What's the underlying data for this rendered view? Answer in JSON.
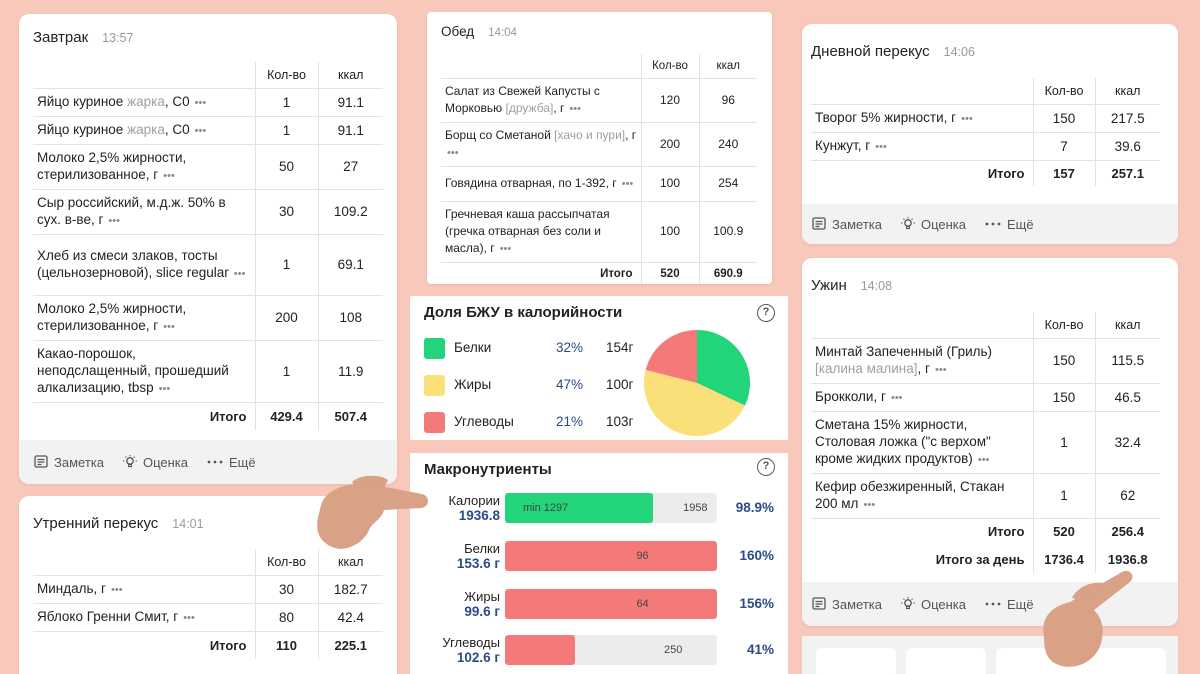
{
  "columns": {
    "qty": "Кол-во",
    "kcal": "ккал"
  },
  "footer": {
    "note": "Заметка",
    "rating": "Оценка",
    "more": "Ещё"
  },
  "breakfast": {
    "title": "Завтрак",
    "time": "13:57",
    "items": [
      {
        "name": "Яйцо куриное",
        "brand": "жарка",
        "unit": ", С0",
        "qty": "1",
        "kcal": "91.1"
      },
      {
        "name": "Яйцо куриное",
        "brand": "жарка",
        "unit": ", С0",
        "qty": "1",
        "kcal": "91.1"
      },
      {
        "name": "Молоко 2,5% жирности, стерилизованное, г",
        "brand": "",
        "unit": "",
        "qty": "50",
        "kcal": "27"
      },
      {
        "name": "Сыр российский, м.д.ж. 50% в сух. в-ве, г",
        "brand": "",
        "unit": "",
        "qty": "30",
        "kcal": "109.2"
      },
      {
        "name": "Хлеб из смеси злаков, тосты (цельнозерновой), slice regular",
        "brand": "",
        "unit": "",
        "qty": "1",
        "kcal": "69.1"
      },
      {
        "name": "Молоко 2,5% жирности, стерилизованное, г",
        "brand": "",
        "unit": "",
        "qty": "200",
        "kcal": "108"
      },
      {
        "name": "Какао-порошок, неподслащенный, прошедший алкализацию, tbsp",
        "brand": "",
        "unit": "",
        "qty": "1",
        "kcal": "11.9"
      }
    ],
    "total_label": "Итого",
    "total_qty": "429.4",
    "total_kcal": "507.4"
  },
  "morning_snack": {
    "title": "Утренний перекус",
    "time": "14:01",
    "items": [
      {
        "name": "Миндаль, г",
        "brand": "",
        "unit": "",
        "qty": "30",
        "kcal": "182.7"
      },
      {
        "name": "Яблоко Гренни Смит, г",
        "brand": "",
        "unit": "",
        "qty": "80",
        "kcal": "42.4"
      }
    ],
    "total_label": "Итого",
    "total_qty": "110",
    "total_kcal": "225.1"
  },
  "lunch": {
    "title": "Обед",
    "time": "14:04",
    "items": [
      {
        "name": "Салат из Свежей Капусты с Морковью",
        "brand": "[дружба]",
        "unit": ", г",
        "qty": "120",
        "kcal": "96"
      },
      {
        "name": "Борщ со Сметаной",
        "brand": "[хачо и пури]",
        "unit": ", г",
        "qty": "200",
        "kcal": "240"
      },
      {
        "name": "Говядина отварная, по 1-392, г",
        "brand": "",
        "unit": "",
        "qty": "100",
        "kcal": "254"
      },
      {
        "name": "Гречневая каша рассыпчатая (гречка отварная без соли и масла), г",
        "brand": "",
        "unit": "",
        "qty": "100",
        "kcal": "100.9"
      }
    ],
    "total_label": "Итого",
    "total_qty": "520",
    "total_kcal": "690.9"
  },
  "day_snack": {
    "title": "Дневной перекус",
    "time": "14:06",
    "items": [
      {
        "name": "Творог 5% жирности, г",
        "brand": "",
        "unit": "",
        "qty": "150",
        "kcal": "217.5"
      },
      {
        "name": "Кунжут, г",
        "brand": "",
        "unit": "",
        "qty": "7",
        "kcal": "39.6"
      }
    ],
    "total_label": "Итого",
    "total_qty": "157",
    "total_kcal": "257.1"
  },
  "dinner": {
    "title": "Ужин",
    "time": "14:08",
    "items": [
      {
        "name": "Минтай Запеченный (Гриль)",
        "brand": "[калина малина]",
        "unit": ", г",
        "qty": "150",
        "kcal": "115.5"
      },
      {
        "name": "Брокколи, г",
        "brand": "",
        "unit": "",
        "qty": "150",
        "kcal": "46.5"
      },
      {
        "name": "Сметана 15% жирности, Столовая ложка (\"с верхом\" кроме жидких продуктов)",
        "brand": "",
        "unit": "",
        "qty": "1",
        "kcal": "32.4"
      },
      {
        "name": "Кефир обезжиренный, Стакан 200 мл",
        "brand": "",
        "unit": "",
        "qty": "1",
        "kcal": "62"
      }
    ],
    "total_label": "Итого",
    "total_qty": "520",
    "total_kcal": "256.4",
    "day_total_label": "Итого за день",
    "day_total_qty": "1736.4",
    "day_total_kcal": "1936.8"
  },
  "bju": {
    "title": "Доля БЖУ в калорийности",
    "help": "?",
    "rows": [
      {
        "name": "Белки",
        "pct": "32%",
        "grams": "154г",
        "color": "#22d47a",
        "share": 32
      },
      {
        "name": "Жиры",
        "pct": "47%",
        "grams": "100г",
        "color": "#fbe07a",
        "share": 47
      },
      {
        "name": "Углеводы",
        "pct": "21%",
        "grams": "103г",
        "color": "#f47a7a",
        "share": 21
      }
    ]
  },
  "macros": {
    "title": "Макронутриенты",
    "help": "?",
    "rows": [
      {
        "label": "Калории",
        "value": "1936.8",
        "fill": 0.7,
        "color": "#22d47a",
        "min_label": "min 1297",
        "target": "1958",
        "target_pos": 0.84,
        "pct": "98.9%"
      },
      {
        "label": "Белки",
        "value": "153.6 г",
        "fill": 1.0,
        "color": "#f47a7a",
        "min_label": "",
        "target": "96",
        "target_pos": 0.62,
        "pct": "160%"
      },
      {
        "label": "Жиры",
        "value": "99.6 г",
        "fill": 1.0,
        "color": "#f47a7a",
        "min_label": "",
        "target": "64",
        "target_pos": 0.62,
        "pct": "156%"
      },
      {
        "label": "Углеводы",
        "value": "102.6 г",
        "fill": 0.33,
        "color": "#f47a7a",
        "min_label": "",
        "target": "250",
        "target_pos": 0.75,
        "pct": "41%"
      }
    ]
  }
}
